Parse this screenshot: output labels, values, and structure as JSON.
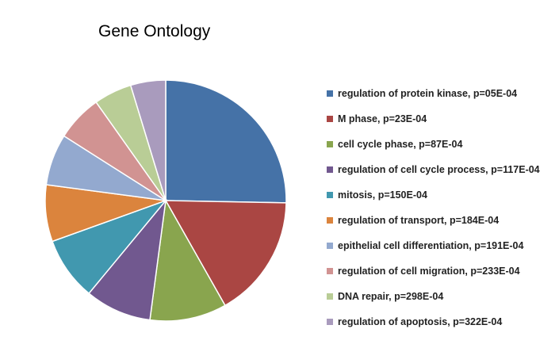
{
  "chart_data": {
    "type": "pie",
    "title": "Gene Ontology",
    "legend_position": "right",
    "categories": [
      "regulation of protein kinase, p=05E-04",
      "M phase, p=23E-04",
      "cell cycle phase, p=87E-04",
      "regulation of cell cycle process, p=117E-04",
      "mitosis, p=150E-04",
      "regulation of transport, p=184E-04",
      "epithelial cell differentiation, p=191E-04",
      "regulation of cell migration, p=233E-04",
      "DNA repair, p=298E-04",
      "regulation of apoptosis, p=322E-04"
    ],
    "values": [
      25.3,
      16.5,
      10.3,
      8.9,
      8.5,
      7.6,
      6.9,
      6.2,
      5.1,
      4.7
    ],
    "colors": [
      "#4572A7",
      "#AA4643",
      "#89A54E",
      "#71588F",
      "#4198AF",
      "#DB843D",
      "#93A9CF",
      "#D19392",
      "#B9CD96",
      "#A99BBD"
    ]
  }
}
